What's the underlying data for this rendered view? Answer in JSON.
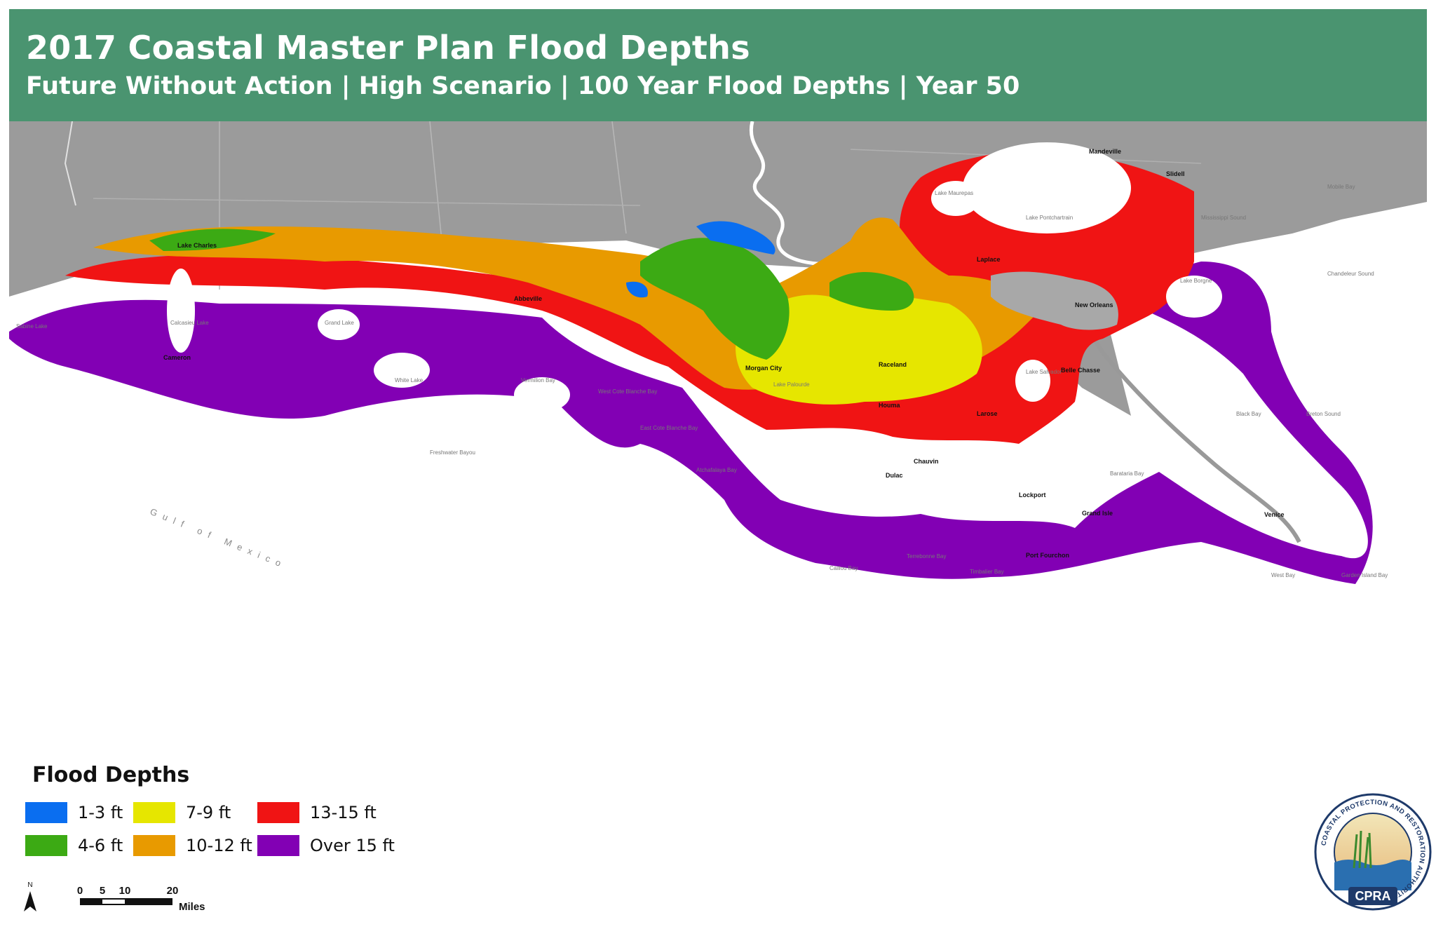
{
  "header": {
    "title": "2017 Coastal Master Plan Flood Depths",
    "subtitle": "Future Without Action | High Scenario | 100 Year Flood Depths | Year 50"
  },
  "colors": {
    "header_bg": "#4a9470",
    "land": "#9b9b9b",
    "water": "#ffffff",
    "depth_1_3": "#0a6ef0",
    "depth_4_6": "#3caa14",
    "depth_7_9": "#e6e600",
    "depth_10_12": "#e89a00",
    "depth_13_15": "#f01414",
    "depth_over_15": "#8200b4"
  },
  "map_labels": {
    "cities": [
      "Mandeville",
      "Slidell",
      "Lake Charles",
      "Abbeville",
      "Laplace",
      "New Orleans",
      "Morgan City",
      "Raceland",
      "Houma",
      "Larose",
      "Belle Chasse",
      "Chauvin",
      "Dulac",
      "Lockport",
      "Grand Isle",
      "Port Fourchon",
      "Venice",
      "Cameron"
    ],
    "water_bodies": [
      "Lake Maurepas",
      "Lake Pontchartrain",
      "Mobile Bay",
      "Mississippi Sound",
      "Lake Borgne",
      "Chandeleur Sound",
      "Breton Sound",
      "Black Bay",
      "Barataria Bay",
      "Calcasieu Lake",
      "Grand Lake",
      "White Lake",
      "Vermilion Bay",
      "West Cote Blanche Bay",
      "East Cote Blanche Bay",
      "Atchafalaya Bay",
      "Terrebonne Bay",
      "Timbalier Bay",
      "Caillou Bay",
      "Lake Salvador",
      "Lake Palourde",
      "West Bay",
      "Garden Island Bay",
      "Sabine Lake",
      "Freshwater Bayou"
    ],
    "gulf": "Gulf of Mexico"
  },
  "legend": {
    "title": "Flood Depths",
    "items": [
      {
        "label": "1-3 ft",
        "color": "#0a6ef0"
      },
      {
        "label": "7-9 ft",
        "color": "#e6e600"
      },
      {
        "label": "13-15 ft",
        "color": "#f01414"
      },
      {
        "label": "4-6 ft",
        "color": "#3caa14"
      },
      {
        "label": "10-12 ft",
        "color": "#e89a00"
      },
      {
        "label": "Over 15 ft",
        "color": "#8200b4"
      }
    ]
  },
  "scale_bar": {
    "north": "N",
    "ticks": [
      "0",
      "5",
      "10",
      "20"
    ],
    "unit": "Miles"
  },
  "logo": {
    "ring_text": "COASTAL PROTECTION AND RESTORATION AUTHORITY",
    "acronym": "CPRA"
  }
}
